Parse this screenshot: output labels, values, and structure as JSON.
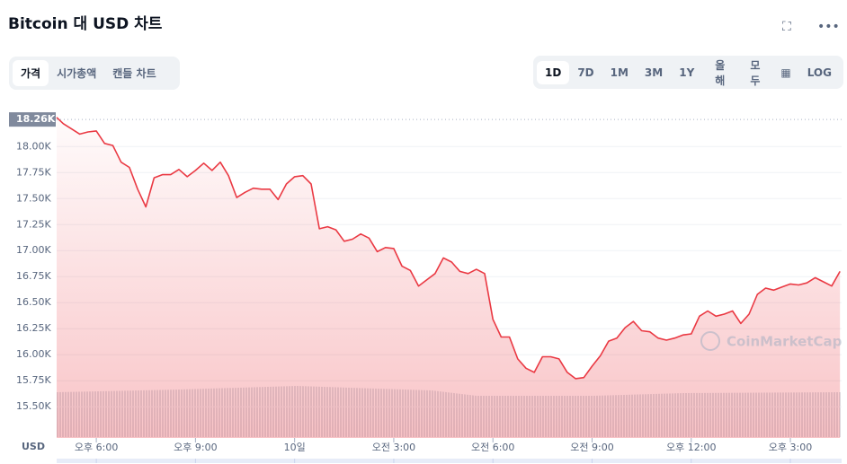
{
  "header": {
    "title": "Bitcoin 대 USD 차트"
  },
  "tabs": [
    "가격",
    "시가총액",
    "캔들 차트"
  ],
  "ranges": [
    "1D",
    "7D",
    "1M",
    "3M",
    "1Y",
    "올해",
    "모두"
  ],
  "log_button": "LOG",
  "chart_data": {
    "type": "line",
    "color": "#ea3943",
    "grid": true,
    "currency_label": "USD",
    "watermark": "CoinMarketCap",
    "current_price": {
      "value": 18260,
      "label": "18.26K"
    },
    "xlim": [
      16.8,
      40.55
    ],
    "ylim": [
      15200,
      18330
    ],
    "xticks": [
      {
        "value": 18,
        "label": "오후 6:00"
      },
      {
        "value": 21,
        "label": "오후 9:00"
      },
      {
        "value": 24,
        "label": "10일"
      },
      {
        "value": 27,
        "label": "오전 3:00"
      },
      {
        "value": 30,
        "label": "오전 6:00"
      },
      {
        "value": 33,
        "label": "오전 9:00"
      },
      {
        "value": 36,
        "label": "오후 12:00"
      },
      {
        "value": 39,
        "label": "오후 3:00"
      }
    ],
    "yticks": [
      {
        "value": 15500,
        "label": "15.50K"
      },
      {
        "value": 15750,
        "label": "15.75K"
      },
      {
        "value": 16000,
        "label": "16.00K"
      },
      {
        "value": 16250,
        "label": "16.25K"
      },
      {
        "value": 16500,
        "label": "16.50K"
      },
      {
        "value": 16750,
        "label": "16.75K"
      },
      {
        "value": 17000,
        "label": "17.00K"
      },
      {
        "value": 17250,
        "label": "17.25K"
      },
      {
        "value": 17500,
        "label": "17.50K"
      },
      {
        "value": 17750,
        "label": "17.75K"
      },
      {
        "value": 18000,
        "label": "18.00K"
      }
    ],
    "x": [
      16.8,
      17,
      17.25,
      17.5,
      17.75,
      18,
      18.25,
      18.5,
      18.75,
      19,
      19.25,
      19.5,
      19.75,
      20,
      20.25,
      20.5,
      20.75,
      21,
      21.25,
      21.5,
      21.75,
      22,
      22.25,
      22.5,
      22.75,
      23,
      23.25,
      23.5,
      23.75,
      24,
      24.25,
      24.5,
      24.75,
      25,
      25.25,
      25.5,
      25.75,
      26,
      26.25,
      26.5,
      26.75,
      27,
      27.25,
      27.5,
      27.75,
      28,
      28.25,
      28.5,
      28.75,
      29,
      29.25,
      29.5,
      29.75,
      30,
      30.25,
      30.5,
      30.75,
      31,
      31.25,
      31.5,
      31.75,
      32,
      32.25,
      32.5,
      32.75,
      33,
      33.25,
      33.5,
      33.75,
      34,
      34.25,
      34.5,
      34.75,
      35,
      35.25,
      35.5,
      35.75,
      36,
      36.25,
      36.5,
      36.75,
      37,
      37.25,
      37.5,
      37.75,
      38,
      38.25,
      38.5,
      38.75,
      39,
      39.25,
      39.5,
      39.75,
      40,
      40.25,
      40.5
    ],
    "values": [
      18280,
      18220,
      18170,
      18120,
      18140,
      18150,
      18030,
      18010,
      17850,
      17800,
      17590,
      17420,
      17700,
      17730,
      17730,
      17780,
      17710,
      17770,
      17840,
      17770,
      17850,
      17720,
      17510,
      17560,
      17600,
      17590,
      17590,
      17490,
      17640,
      17710,
      17720,
      17640,
      17210,
      17230,
      17200,
      17090,
      17110,
      17160,
      17120,
      16990,
      17030,
      17020,
      16850,
      16810,
      16660,
      16720,
      16780,
      16930,
      16890,
      16800,
      16780,
      16820,
      16780,
      16340,
      16170,
      16170,
      15960,
      15870,
      15830,
      15980,
      15980,
      15960,
      15830,
      15770,
      15780,
      15890,
      15990,
      16130,
      16160,
      16260,
      16320,
      16230,
      16220,
      16160,
      16140,
      16160,
      16190,
      16200,
      16370,
      16420,
      16370,
      16390,
      16420,
      16300,
      16390,
      16580,
      16640,
      16620,
      16650,
      16680,
      16670,
      16690,
      16740,
      16700,
      16660,
      16800
    ]
  }
}
